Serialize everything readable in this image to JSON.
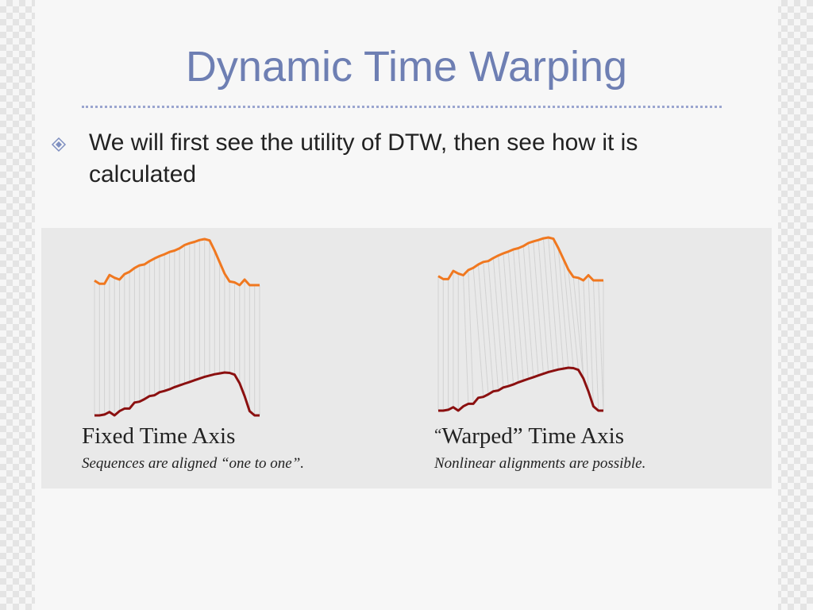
{
  "slide": {
    "title": "Dynamic Time Warping",
    "bullet": "We will first see the utility of DTW, then see how it is calculated"
  },
  "figure": {
    "left_panel": {
      "title": "Fixed Time Axis",
      "subtitle": "Sequences are aligned “one to one”."
    },
    "right_panel": {
      "title_open_quote": "“",
      "title": "Warped” Time Axis",
      "subtitle": "Nonlinear alignments are possible."
    },
    "colors": {
      "top_series": "#f07820",
      "bottom_series": "#8b1010",
      "alignment_lines": "#d2d2d2"
    }
  }
}
